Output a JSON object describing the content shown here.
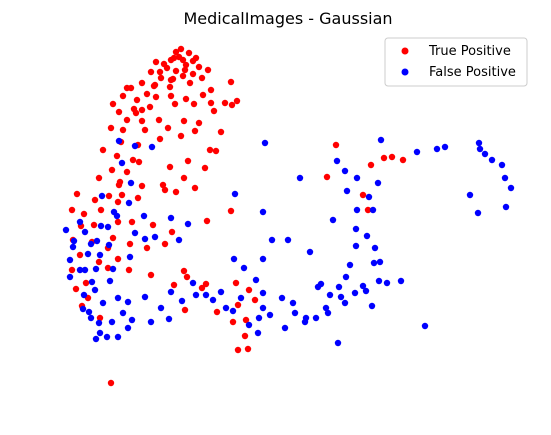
{
  "chart_data": {
    "type": "scatter",
    "title": "MedicalImages - Gaussian",
    "xlabel": "",
    "ylabel": "",
    "axes_visible": false,
    "grid": false,
    "legend_position": "top-right",
    "series": [
      {
        "name": "True Positive",
        "color": "#ff0000",
        "points": [
          [
            181,
            49
          ],
          [
            176,
            52
          ],
          [
            189,
            53
          ],
          [
            196,
            58
          ],
          [
            171,
            60
          ],
          [
            156,
            62
          ],
          [
            164,
            64
          ],
          [
            186,
            65
          ],
          [
            199,
            67
          ],
          [
            167,
            68
          ],
          [
            176,
            71
          ],
          [
            151,
            72
          ],
          [
            193,
            74
          ],
          [
            183,
            76
          ],
          [
            208,
            70
          ],
          [
            161,
            78
          ],
          [
            142,
            83
          ],
          [
            171,
            80
          ],
          [
            190,
            83
          ],
          [
            154,
            86
          ],
          [
            131,
            88
          ],
          [
            147,
            94
          ],
          [
            123,
            96
          ],
          [
            137,
            100
          ],
          [
            156,
            97
          ],
          [
            171,
            96
          ],
          [
            186,
            99
          ],
          [
            203,
            95
          ],
          [
            211,
            90
          ],
          [
            231,
            82
          ],
          [
            225,
            103
          ],
          [
            237,
            101
          ],
          [
            113,
            104
          ],
          [
            119,
            112
          ],
          [
            136,
            113
          ],
          [
            127,
            120
          ],
          [
            150,
            107
          ],
          [
            175,
            104
          ],
          [
            194,
            104
          ],
          [
            211,
            103
          ],
          [
            111,
            128
          ],
          [
            123,
            130
          ],
          [
            145,
            130
          ],
          [
            168,
            128
          ],
          [
            184,
            121
          ],
          [
            199,
            123
          ],
          [
            121,
            142
          ],
          [
            138,
            145
          ],
          [
            160,
            139
          ],
          [
            181,
            136
          ],
          [
            195,
            131
          ],
          [
            221,
            132
          ],
          [
            216,
            151
          ],
          [
            103,
            150
          ],
          [
            117,
            156
          ],
          [
            133,
            160
          ],
          [
            112,
            170
          ],
          [
            127,
            172
          ],
          [
            170,
            167
          ],
          [
            188,
            161
          ],
          [
            99,
            178
          ],
          [
            120,
            182
          ],
          [
            142,
            186
          ],
          [
            163,
            185
          ],
          [
            184,
            178
          ],
          [
            205,
            168
          ],
          [
            122,
            195
          ],
          [
            138,
            198
          ],
          [
            176,
            192
          ],
          [
            195,
            188
          ],
          [
            77,
            194
          ],
          [
            95,
            200
          ],
          [
            118,
            202
          ],
          [
            101,
            210
          ],
          [
            84,
            214
          ],
          [
            72,
            210
          ],
          [
            94,
            225
          ],
          [
            118,
            222
          ],
          [
            132,
            222
          ],
          [
            153,
            225
          ],
          [
            172,
            232
          ],
          [
            207,
            221
          ],
          [
            231,
            211
          ],
          [
            73,
            240
          ],
          [
            92,
            242
          ],
          [
            113,
            238
          ],
          [
            130,
            244
          ],
          [
            147,
            248
          ],
          [
            80,
            255
          ],
          [
            99,
            262
          ],
          [
            118,
            259
          ],
          [
            165,
            244
          ],
          [
            72,
            270
          ],
          [
            108,
            268
          ],
          [
            129,
            270
          ],
          [
            151,
            275
          ],
          [
            184,
            271
          ],
          [
            187,
            277
          ],
          [
            202,
            288
          ],
          [
            86,
            283
          ],
          [
            174,
            285
          ],
          [
            217,
            312
          ],
          [
            185,
            310
          ],
          [
            233,
            322
          ],
          [
            246,
            320
          ],
          [
            238,
            305
          ],
          [
            255,
            300
          ],
          [
            245,
            336
          ],
          [
            248,
            349
          ],
          [
            238,
            350
          ],
          [
            206,
            284
          ],
          [
            236,
            283
          ],
          [
            249,
            290
          ],
          [
            111,
            383
          ],
          [
            327,
            177
          ],
          [
            336,
            145
          ],
          [
            371,
            165
          ],
          [
            384,
            158
          ],
          [
            392,
            157
          ],
          [
            403,
            160
          ],
          [
            363,
            195
          ],
          [
            368,
            210
          ],
          [
            210,
            150
          ],
          [
            165,
            190
          ],
          [
            142,
            110
          ],
          [
            155,
            85
          ],
          [
            202,
            78
          ],
          [
            214,
            111
          ],
          [
            232,
            105
          ],
          [
            173,
            79
          ],
          [
            159,
            120
          ],
          [
            127,
            88
          ],
          [
            119,
            185
          ],
          [
            109,
            196
          ],
          [
            81,
            226
          ],
          [
            76,
            289
          ],
          [
            100,
            318
          ],
          [
            82,
            306
          ],
          [
            88,
            298
          ],
          [
            108,
            248
          ],
          [
            139,
            162
          ],
          [
            183,
            60
          ],
          [
            174,
            58
          ],
          [
            193,
            61
          ],
          [
            179,
            57
          ],
          [
            185,
            70
          ],
          [
            160,
            72
          ],
          [
            170,
            87
          ],
          [
            134,
            109
          ],
          [
            142,
            121
          ]
        ]
      },
      {
        "name": "False Positive",
        "color": "#0000ff",
        "points": [
          [
            119,
            141
          ],
          [
            135,
            146
          ],
          [
            122,
            163
          ],
          [
            152,
            147
          ],
          [
            265,
            143
          ],
          [
            381,
            140
          ],
          [
            417,
            152
          ],
          [
            437,
            149
          ],
          [
            445,
            147
          ],
          [
            479,
            143
          ],
          [
            480,
            149
          ],
          [
            485,
            154
          ],
          [
            492,
            160
          ],
          [
            502,
            165
          ],
          [
            505,
            178
          ],
          [
            511,
            188
          ],
          [
            506,
            207
          ],
          [
            478,
            213
          ],
          [
            470,
            195
          ],
          [
            337,
            161
          ],
          [
            345,
            171
          ],
          [
            357,
            178
          ],
          [
            347,
            191
          ],
          [
            378,
            183
          ],
          [
            369,
            197
          ],
          [
            373,
            210
          ],
          [
            357,
            210
          ],
          [
            333,
            220
          ],
          [
            356,
            229
          ],
          [
            367,
            236
          ],
          [
            375,
            248
          ],
          [
            374,
            263
          ],
          [
            356,
            246
          ],
          [
            350,
            265
          ],
          [
            346,
            277
          ],
          [
            363,
            286
          ],
          [
            355,
            293
          ],
          [
            339,
            287
          ],
          [
            330,
            295
          ],
          [
            318,
            287
          ],
          [
            326,
            308
          ],
          [
            316,
            318
          ],
          [
            305,
            322
          ],
          [
            293,
            303
          ],
          [
            282,
            298
          ],
          [
            270,
            315
          ],
          [
            263,
            308
          ],
          [
            259,
            318
          ],
          [
            233,
            311
          ],
          [
            213,
            300
          ],
          [
            196,
            295
          ],
          [
            171,
            292
          ],
          [
            161,
            308
          ],
          [
            145,
            297
          ],
          [
            128,
            302
          ],
          [
            118,
            298
          ],
          [
            103,
            303
          ],
          [
            91,
            318
          ],
          [
            83,
            309
          ],
          [
            95,
            290
          ],
          [
            110,
            281
          ],
          [
            85,
            270
          ],
          [
            70,
            260
          ],
          [
            73,
            247
          ],
          [
            91,
            244
          ],
          [
            85,
            232
          ],
          [
            66,
            230
          ],
          [
            101,
            226
          ],
          [
            117,
            216
          ],
          [
            129,
            203
          ],
          [
            114,
            212
          ],
          [
            144,
            216
          ],
          [
            155,
            237
          ],
          [
            179,
            240
          ],
          [
            171,
            218
          ],
          [
            188,
            224
          ],
          [
            263,
            212
          ],
          [
            272,
            240
          ],
          [
            288,
            240
          ],
          [
            263,
            259
          ],
          [
            234,
            259
          ],
          [
            244,
            268
          ],
          [
            256,
            280
          ],
          [
            310,
            252
          ],
          [
            379,
            281
          ],
          [
            401,
            281
          ],
          [
            425,
            326
          ],
          [
            338,
            343
          ],
          [
            300,
            178
          ],
          [
            235,
            194
          ],
          [
            131,
            183
          ],
          [
            102,
            196
          ],
          [
            99,
            323
          ],
          [
            112,
            322
          ],
          [
            128,
            328
          ],
          [
            123,
            313
          ],
          [
            151,
            322
          ],
          [
            169,
            319
          ],
          [
            182,
            301
          ],
          [
            221,
            292
          ],
          [
            263,
            293
          ],
          [
            241,
            298
          ],
          [
            295,
            313
          ],
          [
            321,
            284
          ],
          [
            341,
            297
          ],
          [
            366,
            291
          ],
          [
            380,
            262
          ],
          [
            387,
            283
          ],
          [
            107,
            337
          ],
          [
            96,
            339
          ],
          [
            130,
            257
          ],
          [
            113,
            269
          ],
          [
            88,
            254
          ],
          [
            74,
            241
          ],
          [
            80,
            270
          ],
          [
            92,
            282
          ],
          [
            80,
            222
          ],
          [
            135,
            233
          ],
          [
            108,
            227
          ],
          [
            145,
            239
          ],
          [
            193,
            283
          ],
          [
            206,
            295
          ],
          [
            226,
            308
          ],
          [
            249,
            325
          ],
          [
            258,
            333
          ],
          [
            285,
            328
          ],
          [
            306,
            318
          ],
          [
            328,
            313
          ],
          [
            345,
            303
          ],
          [
            372,
            306
          ],
          [
            100,
            333
          ],
          [
            118,
            337
          ],
          [
            132,
            320
          ],
          [
            89,
            312
          ],
          [
            84,
            295
          ],
          [
            70,
            277
          ],
          [
            96,
            269
          ],
          [
            100,
            255
          ],
          [
            109,
            245
          ],
          [
            97,
            241
          ]
        ]
      }
    ],
    "xlim": [
      55,
      520
    ],
    "ylim_screen_top": 30,
    "ylim_screen_bottom": 400
  },
  "legend": {
    "items": [
      {
        "label": "True Positive",
        "color": "#ff0000"
      },
      {
        "label": "False Positive",
        "color": "#0000ff"
      }
    ]
  }
}
